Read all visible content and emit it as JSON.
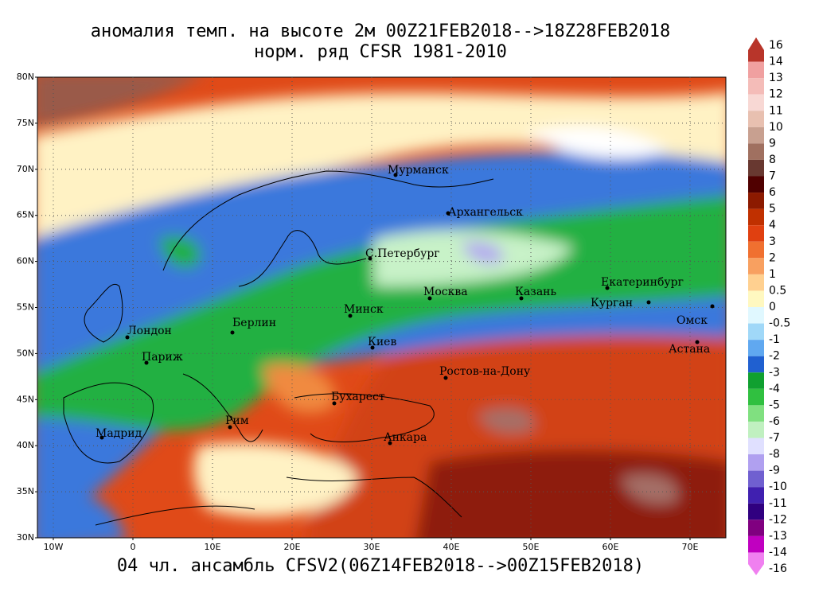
{
  "header": {
    "title": "аномалия темп. на высоте 2м 00Z21FEB2018-->18Z28FEB2018",
    "subtitle": "норм. ряд CFSR 1981-2010"
  },
  "map": {
    "lat_ticks": [
      "80N",
      "75N",
      "70N",
      "65N",
      "60N",
      "55N",
      "50N",
      "45N",
      "40N",
      "35N",
      "30N"
    ],
    "lon_ticks": [
      "10W",
      "0",
      "10E",
      "20E",
      "30E",
      "40E",
      "50E",
      "60E",
      "70E"
    ],
    "cities": [
      "Мурманск",
      "Архангельск",
      "С.Петербург",
      "Москва",
      "Казань",
      "Екатеринбург",
      "Курган",
      "Омск",
      "Астана",
      "Минск",
      "Берлин",
      "Лондон",
      "Париж",
      "Киев",
      "Ростов-на-Дону",
      "Бухарест",
      "Рим",
      "Мадрид",
      "Анкара"
    ]
  },
  "colorbar": {
    "levels": [
      16,
      14,
      13,
      12,
      11,
      10,
      9,
      8,
      7,
      6,
      5,
      4,
      3,
      2,
      1,
      0.5,
      0,
      -0.5,
      -1,
      -2,
      -3,
      -4,
      -5,
      -6,
      -7,
      -8,
      -9,
      -10,
      -11,
      -12,
      -13,
      -14,
      -16
    ]
  },
  "footer": "04 чл. ансамбль CFSV2(06Z14FEB2018-->00Z15FEB2018)"
}
